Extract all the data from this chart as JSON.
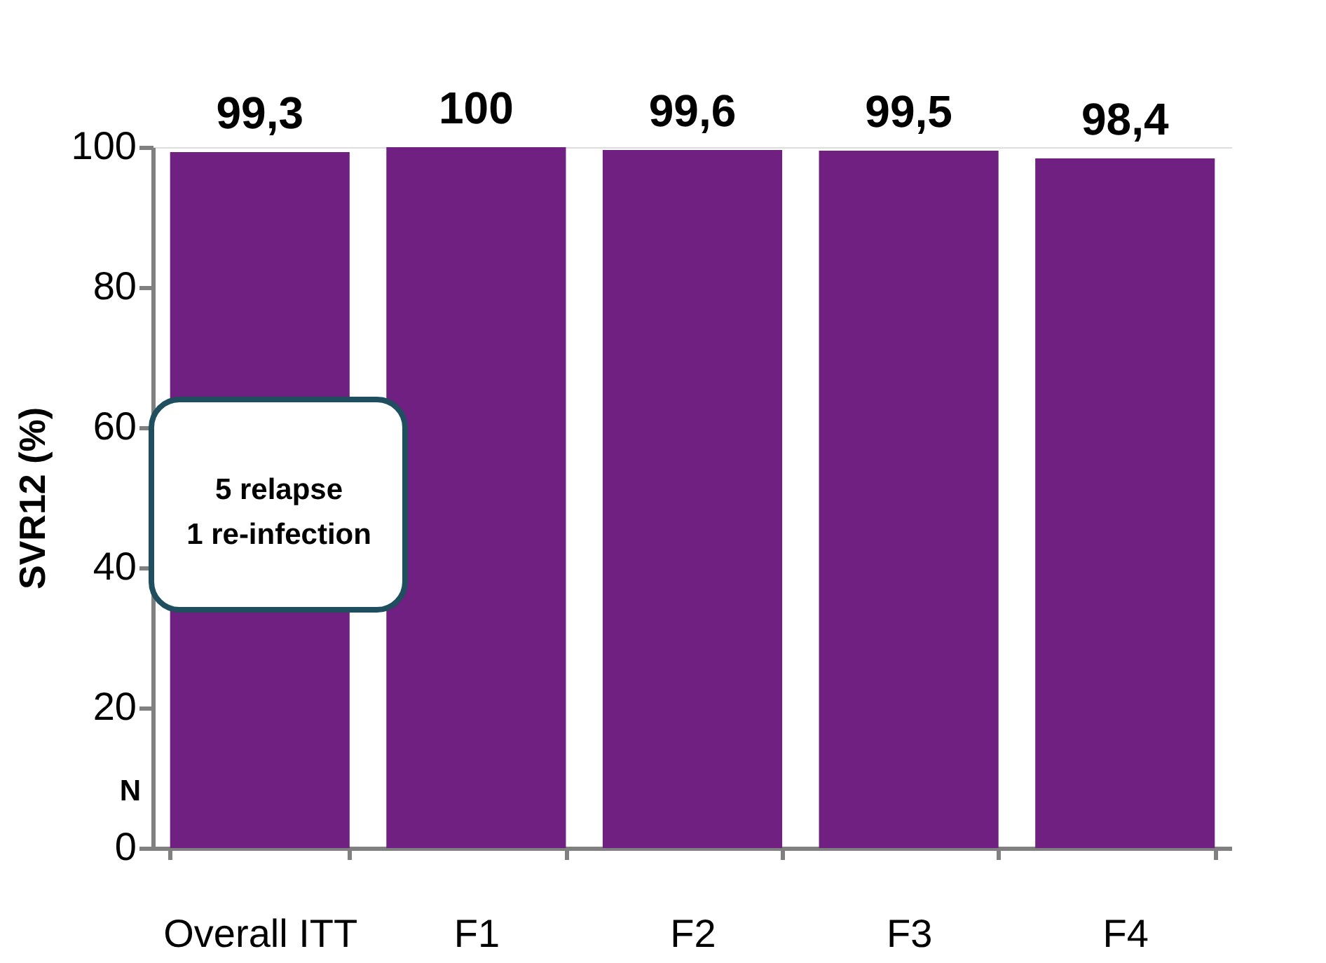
{
  "chart_data": {
    "type": "bar",
    "ylabel": "SVR12 (%)",
    "categories": [
      "Overall ITT",
      "F1",
      "F2",
      "F3",
      "F4"
    ],
    "values": [
      99.3,
      100,
      99.6,
      99.5,
      98.4
    ],
    "value_labels": [
      "99,3",
      "100",
      "99,6",
      "99,5",
      "98,4"
    ],
    "color": "#6f2080",
    "ylim": [
      0,
      100
    ],
    "yticks": [
      0,
      20,
      40,
      60,
      80,
      100
    ],
    "grid": false,
    "annotations": [
      "5 relapse\n1 re-infection",
      "N"
    ]
  }
}
